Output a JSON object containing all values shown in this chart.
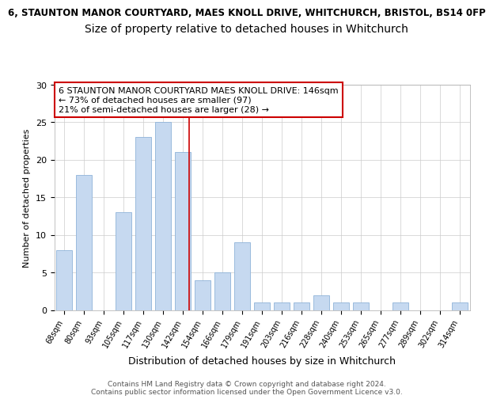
{
  "title1": "6, STAUNTON MANOR COURTYARD, MAES KNOLL DRIVE, WHITCHURCH, BRISTOL, BS14 0FP",
  "title2": "Size of property relative to detached houses in Whitchurch",
  "xlabel": "Distribution of detached houses by size in Whitchurch",
  "ylabel": "Number of detached properties",
  "categories": [
    "68sqm",
    "80sqm",
    "93sqm",
    "105sqm",
    "117sqm",
    "130sqm",
    "142sqm",
    "154sqm",
    "166sqm",
    "179sqm",
    "191sqm",
    "203sqm",
    "216sqm",
    "228sqm",
    "240sqm",
    "253sqm",
    "265sqm",
    "277sqm",
    "289sqm",
    "302sqm",
    "314sqm"
  ],
  "values": [
    8,
    18,
    0,
    13,
    23,
    25,
    21,
    4,
    5,
    9,
    1,
    1,
    1,
    2,
    1,
    1,
    0,
    1,
    0,
    0,
    1
  ],
  "bar_color": "#c6d9f0",
  "bar_edgecolor": "#8fb3d9",
  "vline_x": 6.3,
  "vline_color": "#cc0000",
  "annotation_text": "6 STAUNTON MANOR COURTYARD MAES KNOLL DRIVE: 146sqm\n← 73% of detached houses are smaller (97)\n21% of semi-detached houses are larger (28) →",
  "annotation_box_color": "#ffffff",
  "annotation_box_edge": "#cc0000",
  "ylim": [
    0,
    30
  ],
  "yticks": [
    0,
    5,
    10,
    15,
    20,
    25,
    30
  ],
  "footer_text": "Contains HM Land Registry data © Crown copyright and database right 2024.\nContains public sector information licensed under the Open Government Licence v3.0.",
  "title1_fontsize": 8.5,
  "title2_fontsize": 10,
  "xlabel_fontsize": 9,
  "ylabel_fontsize": 8,
  "annotation_fontsize": 8,
  "footer_fontsize": 6.5
}
